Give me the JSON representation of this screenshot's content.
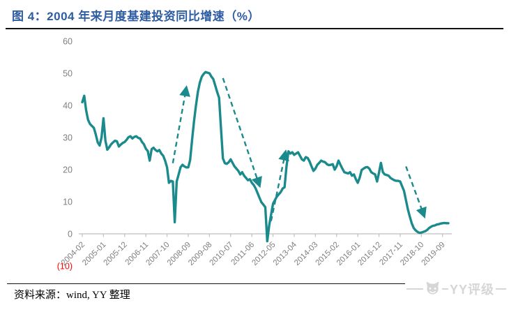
{
  "title": "图 4：2004 年来月度基建投资同比增速（%）",
  "footer": {
    "source_label": "资料来源：wind, YY 整理"
  },
  "watermark": {
    "text": "YY评级",
    "icon": "cat-face-icon"
  },
  "colors": {
    "line_teal": "#1b8a8c",
    "title_blue": "#2d5ca3",
    "axis_label_gray": "#7f7f7f",
    "axis_line_gray": "#bfbfbf",
    "negative_tick_red": "#ff0000",
    "rule_dark": "#111118",
    "watermark_gray": "#d6d6d6"
  },
  "y_axis": {
    "tick_labels": [
      "60",
      "50",
      "40",
      "30",
      "20",
      "10",
      "0"
    ],
    "tick_values": [
      60,
      50,
      40,
      30,
      20,
      10,
      0
    ],
    "negative_tick_label": "(10)",
    "negative_tick_value": -10,
    "min": -10,
    "max": 60
  },
  "x_axis": {
    "tick_labels": [
      "2004-02",
      "2005-01",
      "2005-12",
      "2006-11",
      "2007-10",
      "2008-09",
      "2009-08",
      "2010-07",
      "2011-06",
      "2012-05",
      "2013-04",
      "2014-03",
      "2015-02",
      "2016-01",
      "2016-12",
      "2017-11",
      "2018-10",
      "2019-09"
    ],
    "label_rotation_deg": 45
  },
  "chart_data": {
    "type": "line",
    "title": "2004 年来月度基建投资同比增速（%）",
    "xlabel": "",
    "ylabel": "",
    "ylim": [
      -10,
      60
    ],
    "grid": false,
    "legend": "none",
    "x_start": "2004-02",
    "x_end": "2019-12",
    "x_freq": "monthly",
    "tick_every": 11,
    "series": [
      {
        "name": "月度基建投资同比增速(%)",
        "values": [
          41,
          43,
          38.5,
          35.5,
          34.2,
          33.6,
          33,
          31,
          28.5,
          27.5,
          30,
          36,
          29,
          26.2,
          27,
          27.9,
          28.5,
          29,
          28.8,
          27.2,
          27.8,
          28.3,
          28.6,
          29.3,
          30.1,
          30.4,
          29.7,
          30.2,
          30.4,
          29.9,
          29.7,
          28.6,
          27.9,
          26.5,
          25.8,
          22.8,
          26.4,
          26.8,
          26.1,
          25.7,
          26.1,
          25,
          24.3,
          22.8,
          20.7,
          15.9,
          16.5,
          16.3,
          3.6,
          16.3,
          18.5,
          20.7,
          21.5,
          21,
          20.7,
          20.7,
          23,
          29.3,
          35.1,
          39.9,
          44.2,
          47.1,
          48.9,
          49.8,
          50.4,
          50.2,
          50,
          49,
          48.2,
          46.2,
          44.2,
          42.4,
          33,
          23.5,
          22,
          21.8,
          22.3,
          23.2,
          22.1,
          21,
          20.3,
          19.6,
          18.5,
          19.2,
          18.1,
          17.4,
          16.7,
          17,
          15.9,
          15.2,
          14.1,
          12.7,
          11.2,
          9.8,
          9.1,
          8.3,
          -2.3,
          2.5,
          6,
          9.4,
          10.5,
          11.6,
          12.3,
          13,
          14.1,
          14.5,
          21,
          25.7,
          25,
          25.4,
          24.6,
          25,
          25.4,
          24.3,
          23.2,
          22.8,
          23.9,
          23.6,
          22.5,
          21,
          19.6,
          20.3,
          21.5,
          22.1,
          22.8,
          22.5,
          22.3,
          21.7,
          21.4,
          21.5,
          21.7,
          20,
          21,
          22.8,
          21.5,
          20.3,
          19.2,
          19,
          18.8,
          19.2,
          18.1,
          18.5,
          17,
          15.9,
          17.5,
          19.9,
          20.3,
          20.7,
          20.8,
          20.3,
          19.2,
          18.8,
          18.5,
          16.3,
          19,
          22.1,
          19.2,
          18.5,
          18.3,
          18.1,
          17.4,
          17,
          16.7,
          16.5,
          16.5,
          16.3,
          14.8,
          13.4,
          10.5,
          7.6,
          5.4,
          3.3,
          1.8,
          1.1,
          0.6,
          0.3,
          0.4,
          0.6,
          0.8,
          1.2,
          1.8,
          2.2,
          2.5,
          2.6,
          2.9,
          3,
          3.2,
          3.3,
          3.4,
          3.3,
          3.3
        ]
      }
    ],
    "annotations": [
      {
        "shape": "dashed-arrow",
        "direction": "up",
        "from_month_index": 47,
        "from_value": 22,
        "to_month_index": 54,
        "to_value": 45.5
      },
      {
        "shape": "dashed-arrow",
        "direction": "down",
        "from_month_index": 73,
        "from_value": 48.5,
        "to_month_index": 92,
        "to_value": 15
      },
      {
        "shape": "dashed-arrow",
        "direction": "up",
        "from_month_index": 98,
        "from_value": 4,
        "to_month_index": 105.5,
        "to_value": 25.5
      },
      {
        "shape": "dashed-arrow",
        "direction": "down",
        "from_month_index": 168,
        "from_value": 21,
        "to_month_index": 177.5,
        "to_value": 5.5
      }
    ]
  }
}
